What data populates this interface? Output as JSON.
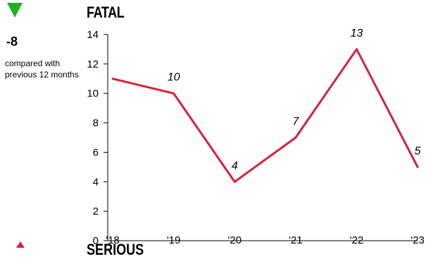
{
  "change": {
    "value": "-8",
    "description": "compared with previous 12 months",
    "direction": "down",
    "color": "#20b020"
  },
  "chart_data": {
    "type": "line",
    "title": "FATAL",
    "categories": [
      "'18",
      "'19",
      "'20",
      "'21",
      "'22",
      "'23"
    ],
    "values": [
      11,
      10,
      4,
      7,
      13,
      5
    ],
    "data_labels": [
      "",
      "10",
      "4",
      "7",
      "13",
      "5"
    ],
    "ylim": [
      0,
      14
    ],
    "yticks": [
      0,
      2,
      4,
      6,
      8,
      10,
      12,
      14
    ],
    "grid": false,
    "line_color": "#d9203c"
  },
  "next_section": {
    "title": "SERIOUS",
    "direction": "up",
    "color": "#d9203c"
  }
}
